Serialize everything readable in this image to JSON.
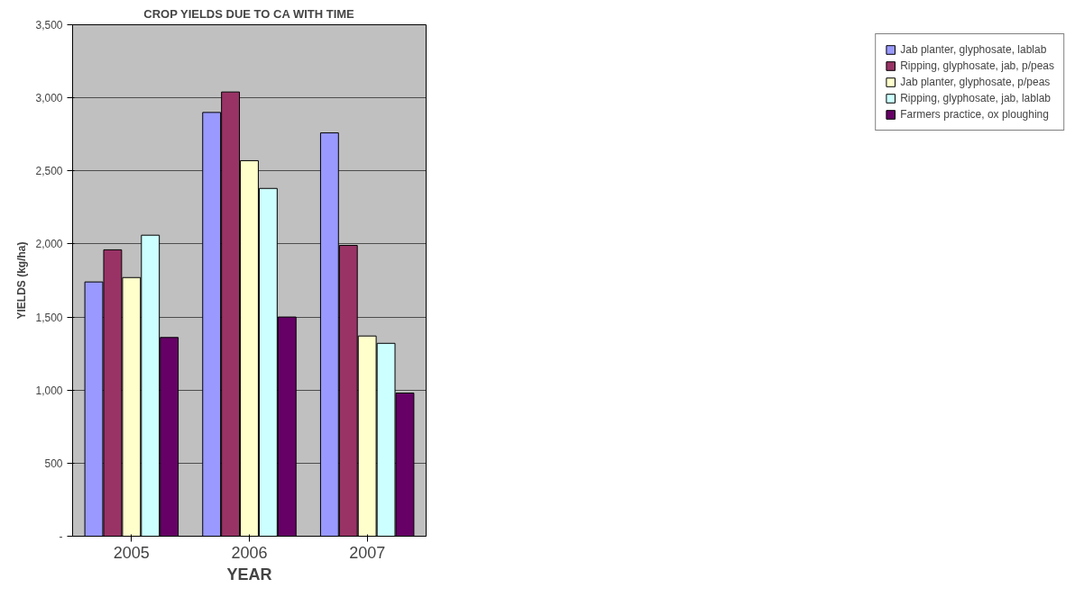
{
  "chart_data": {
    "type": "bar",
    "title": "CROP YIELDS DUE TO CA WITH TIME",
    "xlabel": "YEAR",
    "ylabel": "YIELDS (kg/ha)",
    "categories": [
      "2005",
      "2006",
      "2007"
    ],
    "series": [
      {
        "name": "Jab planter, glyphosate, lablab",
        "color": "#9999ff",
        "values": [
          1740,
          2900,
          2760
        ]
      },
      {
        "name": "Ripping, glyphosate, jab, p/peas",
        "color": "#993366",
        "values": [
          1960,
          3040,
          1990
        ]
      },
      {
        "name": "Jab planter, glyphosate, p/peas",
        "color": "#ffffcc",
        "values": [
          1770,
          2570,
          1370
        ]
      },
      {
        "name": "Ripping, glyphosate, jab, lablab",
        "color": "#ccffff",
        "values": [
          2060,
          2380,
          1320
        ]
      },
      {
        "name": "Farmers practice, ox ploughing",
        "color": "#660066",
        "values": [
          1360,
          1500,
          980
        ]
      }
    ],
    "ylim": [
      0,
      3500
    ],
    "yticks": [
      {
        "value": 0,
        "label": "-"
      },
      {
        "value": 500,
        "label": "500"
      },
      {
        "value": 1000,
        "label": "1,000"
      },
      {
        "value": 1500,
        "label": "1,500"
      },
      {
        "value": 2000,
        "label": "2,000"
      },
      {
        "value": 2500,
        "label": "2,500"
      },
      {
        "value": 3000,
        "label": "3,000"
      },
      {
        "value": 3500,
        "label": "3,500"
      }
    ],
    "grid": "y",
    "legend": "right"
  }
}
